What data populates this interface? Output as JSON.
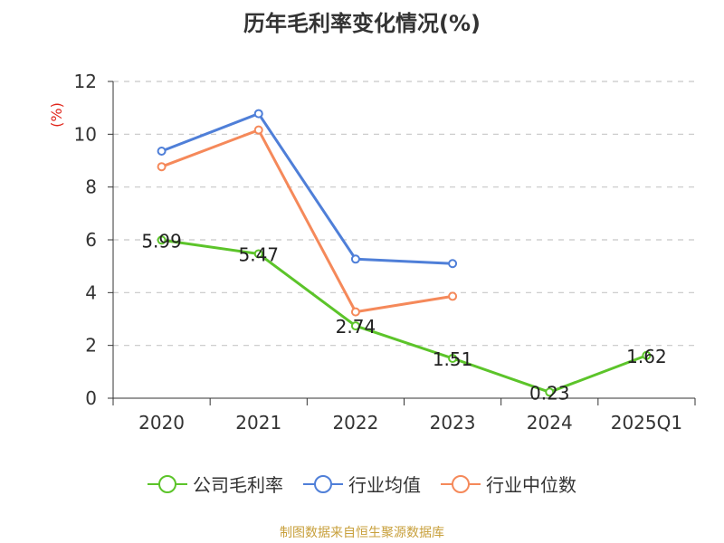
{
  "chart_data": {
    "type": "line",
    "title": "历年毛利率变化情况(%)",
    "ylabel": "(%)",
    "xlabel": "",
    "categories": [
      "2020",
      "2021",
      "2022",
      "2023",
      "2024",
      "2025Q1"
    ],
    "ylim": [
      0,
      12
    ],
    "yticks": [
      0,
      2,
      4,
      6,
      8,
      10,
      12
    ],
    "grid": true,
    "legend_position": "bottom",
    "series": [
      {
        "name": "公司毛利率",
        "color": "#5cc42a",
        "values": [
          5.99,
          5.47,
          2.74,
          1.51,
          0.23,
          1.62
        ],
        "labels": [
          "5.99",
          "5.47",
          "2.74",
          "1.51",
          "0.23",
          "1.62"
        ]
      },
      {
        "name": "行业均值",
        "color": "#4f7fd8",
        "values": [
          9.36,
          10.78,
          5.27,
          5.1,
          null,
          null
        ],
        "labels": []
      },
      {
        "name": "行业中位数",
        "color": "#f5895a",
        "values": [
          8.77,
          10.16,
          3.27,
          3.86,
          null,
          null
        ],
        "labels": []
      }
    ]
  },
  "footer": {
    "source": "制图数据来自恒生聚源数据库"
  }
}
